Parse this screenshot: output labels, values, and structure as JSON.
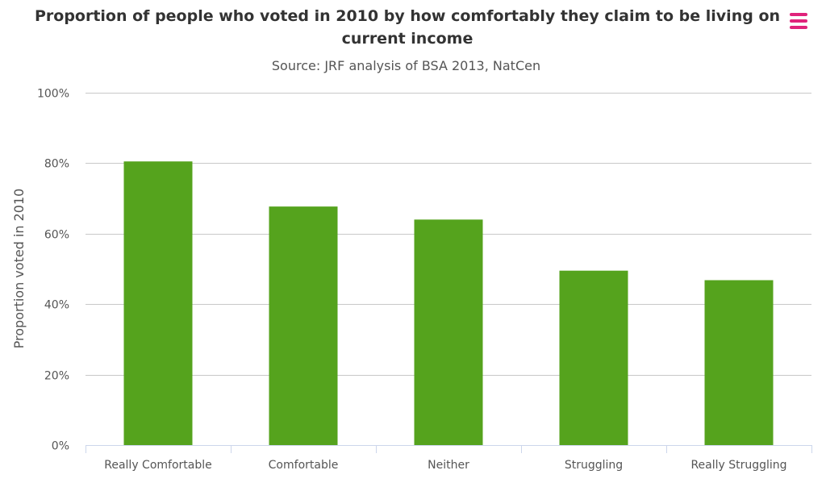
{
  "chart_data": {
    "type": "bar",
    "title": "Proportion of people who voted in 2010 by how comfortably they claim to be living on current income",
    "subtitle": "Source: JRF analysis of BSA 2013, NatCen",
    "ylabel": "Proportion voted in 2010",
    "xlabel": "",
    "categories": [
      "Really Comfortable",
      "Comfortable",
      "Neither",
      "Struggling",
      "Really Struggling"
    ],
    "values": [
      80.5,
      67.7,
      64.0,
      49.5,
      46.8
    ],
    "ylim": [
      0,
      100
    ],
    "yticks": [
      0,
      20,
      40,
      60,
      80,
      100
    ],
    "ytick_labels": [
      "0%",
      "20%",
      "40%",
      "60%",
      "80%",
      "100%"
    ],
    "grid": true,
    "legend": "none",
    "bar_color": "#55a31d",
    "gridline_color": "#c8c8c8",
    "axis_color": "#ccd6eb"
  },
  "menu": {
    "icon": "hamburger-menu-icon",
    "color": "#e0237b"
  }
}
